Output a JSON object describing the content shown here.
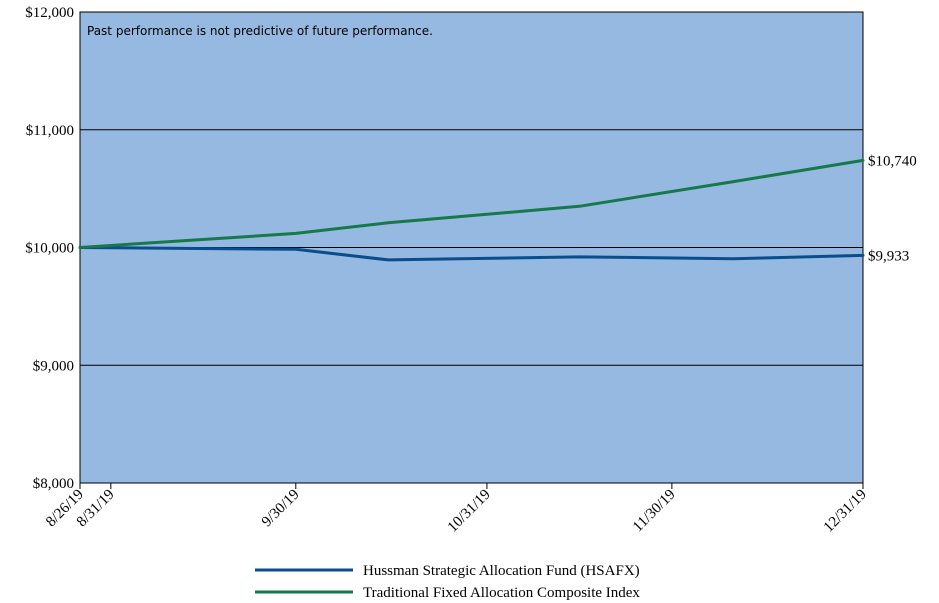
{
  "chart_data": {
    "type": "line",
    "note": "Past performance is not predictive of future performance.",
    "x_labels": [
      "8/26/19",
      "8/31/19",
      "9/30/19",
      "10/31/19",
      "11/30/19",
      "12/31/19"
    ],
    "y_ticks": [
      "$12,000",
      "$11,000",
      "$10,000",
      "$9,000",
      "$8,000"
    ],
    "ylim": [
      8000,
      12000
    ],
    "grid": true,
    "background_color": "#95b9e1",
    "x": [
      "8/26/19",
      "9/30/19",
      "10/15/19",
      "11/15/19",
      "12/10/19",
      "12/31/19"
    ],
    "series": [
      {
        "name": "Hussman Strategic Allocation Fund (HSAFX)",
        "color": "#0b4d8c",
        "values": [
          10000,
          9985,
          9895,
          9920,
          9905,
          9933
        ],
        "end_label": "$9,933"
      },
      {
        "name": "Traditional Fixed Allocation Composite Index",
        "color": "#17784a",
        "values": [
          10000,
          10120,
          10210,
          10350,
          10560,
          10740
        ],
        "end_label": "$10,740"
      }
    ],
    "legend_position": "bottom-center"
  }
}
